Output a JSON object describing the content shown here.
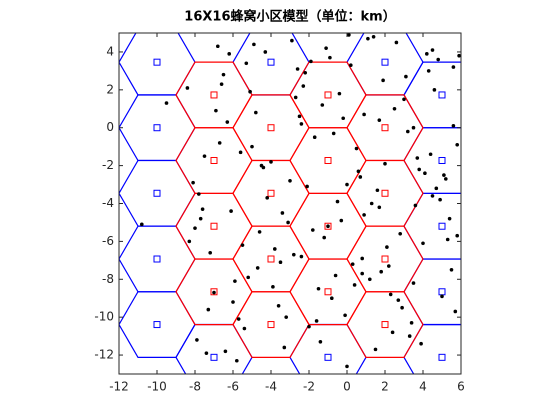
{
  "chart_data": {
    "type": "scatter",
    "title": "16X16蜂窝小区模型（单位：km）",
    "xlim": [
      -12,
      6
    ],
    "ylim": [
      -13,
      5
    ],
    "xticks": [
      -12,
      -10,
      -8,
      -6,
      -4,
      -2,
      0,
      2,
      4,
      6
    ],
    "yticks": [
      -12,
      -10,
      -8,
      -6,
      -4,
      -2,
      0,
      2,
      4
    ],
    "cell_radius": 2,
    "cells": {
      "x": [
        -10,
        -10,
        -10,
        -10,
        -10,
        -7,
        -7,
        -7,
        -7,
        -7,
        -4,
        -4,
        -4,
        -4,
        -4,
        -1,
        -1,
        -1,
        -1,
        -1,
        2,
        2,
        2,
        2,
        2,
        5,
        5,
        5,
        5,
        5
      ],
      "y": [
        3.46,
        0,
        -3.46,
        -6.93,
        -10.39,
        1.73,
        -1.73,
        -5.2,
        -8.66,
        -12.12,
        3.46,
        0,
        -3.46,
        -6.93,
        -10.39,
        1.73,
        -1.73,
        -5.2,
        -8.66,
        -12.12,
        3.46,
        0,
        -3.46,
        -6.93,
        -10.39,
        1.73,
        -1.73,
        -5.2,
        -8.66,
        -12.12
      ],
      "colors": [
        "#0000ff",
        "#0000ff",
        "#0000ff",
        "#0000ff",
        "#0000ff",
        "#ff0000",
        "#ff0000",
        "#ff0000",
        "#ff0000",
        "#0000ff",
        "#0000ff",
        "#ff0000",
        "#ff0000",
        "#ff0000",
        "#ff0000",
        "#ff0000",
        "#ff0000",
        "#ff0000",
        "#ff0000",
        "#0000ff",
        "#0000ff",
        "#ff0000",
        "#ff0000",
        "#ff0000",
        "#ff0000",
        "#0000ff",
        "#0000ff",
        "#0000ff",
        "#0000ff",
        "#0000ff"
      ]
    },
    "points": {
      "color": "#000000",
      "x": [
        -8.4,
        -7.5,
        -6.2,
        -5.5,
        -4.8,
        -3.6,
        -2.9,
        -2.1,
        -1.3,
        -0.6,
        0.2,
        0.9,
        1.7,
        2.4,
        3.1,
        3.8,
        4.5,
        5.3,
        5.8,
        -7.9,
        -6.8,
        -5.9,
        -5.1,
        -4.2,
        -3.3,
        -2.5,
        -1.8,
        -0.9,
        -0.1,
        0.7,
        1.4,
        2.2,
        3.0,
        3.6,
        4.3,
        5.0,
        5.6,
        -8.1,
        -7.2,
        -6.5,
        -5.7,
        -4.9,
        -4.0,
        -3.1,
        -2.3,
        -1.5,
        -0.7,
        0.1,
        0.8,
        1.6,
        2.5,
        3.3,
        4.1,
        4.8,
        5.5,
        -7.6,
        -6.9,
        -6.0,
        -5.3,
        -4.5,
        -3.8,
        -2.7,
        -2.0,
        -1.1,
        -0.3,
        0.5,
        1.2,
        1.9,
        2.8,
        3.5,
        4.2,
        4.9,
        5.7,
        -8.3,
        -7.4,
        -6.6,
        -5.6,
        -4.6,
        -3.5,
        -2.6,
        -1.7,
        -0.8,
        0.0,
        0.9,
        1.8,
        2.6,
        3.4,
        4.4,
        5.2,
        5.9,
        -7.8,
        -7.0,
        -6.3,
        -5.4,
        -4.4,
        -3.4,
        -2.4,
        -1.4,
        -0.5,
        0.4,
        1.3,
        2.1,
        2.9,
        3.7,
        4.6,
        5.4,
        -9.5,
        -10.8,
        -6.7,
        -5.2,
        -4.3,
        -3.2,
        -2.2,
        -1.2,
        -0.2,
        0.6,
        1.5,
        2.3,
        3.2,
        4.0,
        4.7,
        5.6,
        -8.0,
        -7.3,
        -6.1,
        -5.0,
        -3.9,
        -2.8,
        -1.6,
        -0.4,
        0.3,
        1.1,
        2.0,
        2.7,
        3.9,
        5.1,
        -7.7,
        -6.4,
        -4.7,
        -3.0,
        -1.9,
        -1.0,
        0.8,
        1.7,
        3.5,
        4.5,
        5.8,
        -5.8,
        -2.4,
        0.0
      ],
      "y": [
        2.1,
        -1.5,
        3.9,
        -6.2,
        0.8,
        -9.4,
        4.6,
        -3.1,
        1.2,
        -7.8,
        3.3,
        -4.6,
        0.4,
        -10.8,
        2.7,
        -2.2,
        4.1,
        -5.9,
        -0.9,
        -11.2,
        4.3,
        -8.1,
        1.9,
        -3.7,
        -11.6,
        0.6,
        -5.4,
        3.7,
        -9.9,
        -2.6,
        4.8,
        -7.3,
        1.5,
        -4.1,
        3.0,
        -8.9,
        0.1,
        -2.9,
        -6.6,
        2.8,
        -10.1,
        4.4,
        -1.8,
        -5.0,
        2.2,
        -8.5,
        -0.3,
        4.9,
        -6.9,
        -3.3,
        1.0,
        -11.0,
        -2.4,
        3.6,
        -7.5,
        -4.3,
        0.9,
        -9.2,
        3.4,
        -2.0,
        -6.4,
        1.6,
        -10.5,
        4.2,
        -4.9,
        -1.1,
        -8.0,
        2.5,
        -5.6,
        0.0,
        3.9,
        -3.8,
        -9.7,
        -6.0,
        -11.9,
        2.3,
        -1.3,
        -5.5,
        -7.1,
        3.1,
        -0.5,
        -9.0,
        -3.0,
        0.7,
        -7.6,
        4.5,
        -10.3,
        -1.4,
        -2.7,
        3.8,
        -3.5,
        -8.7,
        0.3,
        -10.6,
        -2.1,
        -4.5,
        -6.8,
        -11.3,
        -3.9,
        -8.3,
        -4.0,
        -6.3,
        -9.5,
        -1.6,
        2.0,
        -4.8,
        1.3,
        -5.1,
        -0.8,
        -7.9,
        4.0,
        -10.0,
        2.9,
        -5.8,
        0.5,
        -2.3,
        -11.7,
        -8.8,
        -0.2,
        -6.1,
        -3.2,
        3.2,
        -5.3,
        -9.6,
        -4.4,
        -1.0,
        -8.4,
        -6.7,
        -10.2,
        1.8,
        -7.2,
        4.7,
        -1.9,
        -9.1,
        -11.4,
        -2.5,
        -4.8,
        -11.8,
        -7.4,
        -2.8,
        3.5,
        -5.2,
        -7.7,
        -4.2,
        -8.2,
        -3.6,
        -5.7,
        -12.3,
        0.2,
        -12.6
      ]
    }
  }
}
